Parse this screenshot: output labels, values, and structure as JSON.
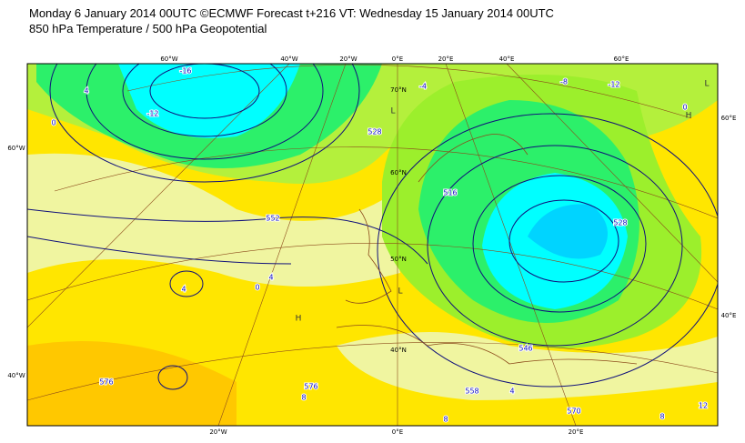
{
  "header": {
    "title": "Monday 6 January 2014 00UTC ©ECMWF Forecast t+216 VT: Wednesday 15 January 2014 00UTC",
    "subtitle": "850 hPa Temperature / 500 hPa Geopotential"
  },
  "map": {
    "lon_labels_top": [
      "60°W",
      "40°W",
      "20°W",
      "0°E",
      "20°E",
      "40°E",
      "60°E"
    ],
    "lon_labels_bottom": [
      "20°W",
      "0°E",
      "20°E"
    ],
    "lat_labels_left": [
      "60°W",
      "40°W"
    ],
    "lat_labels_right": [
      "60°E",
      "40°E"
    ],
    "lat_labels_inner": [
      "70°N",
      "60°N",
      "50°N",
      "40°N"
    ],
    "geopotential_labels": [
      "552",
      "528",
      "516",
      "528",
      "546",
      "558",
      "570",
      "576",
      "576"
    ],
    "temperature_labels": [
      "-12",
      "-16",
      "-8",
      "-12",
      "-4",
      "0",
      "4",
      "8",
      "8",
      "8",
      "12",
      "4",
      "0",
      "4",
      "0",
      "4"
    ],
    "pressure_markers": [
      "H",
      "L",
      "L",
      "H",
      "L"
    ]
  }
}
